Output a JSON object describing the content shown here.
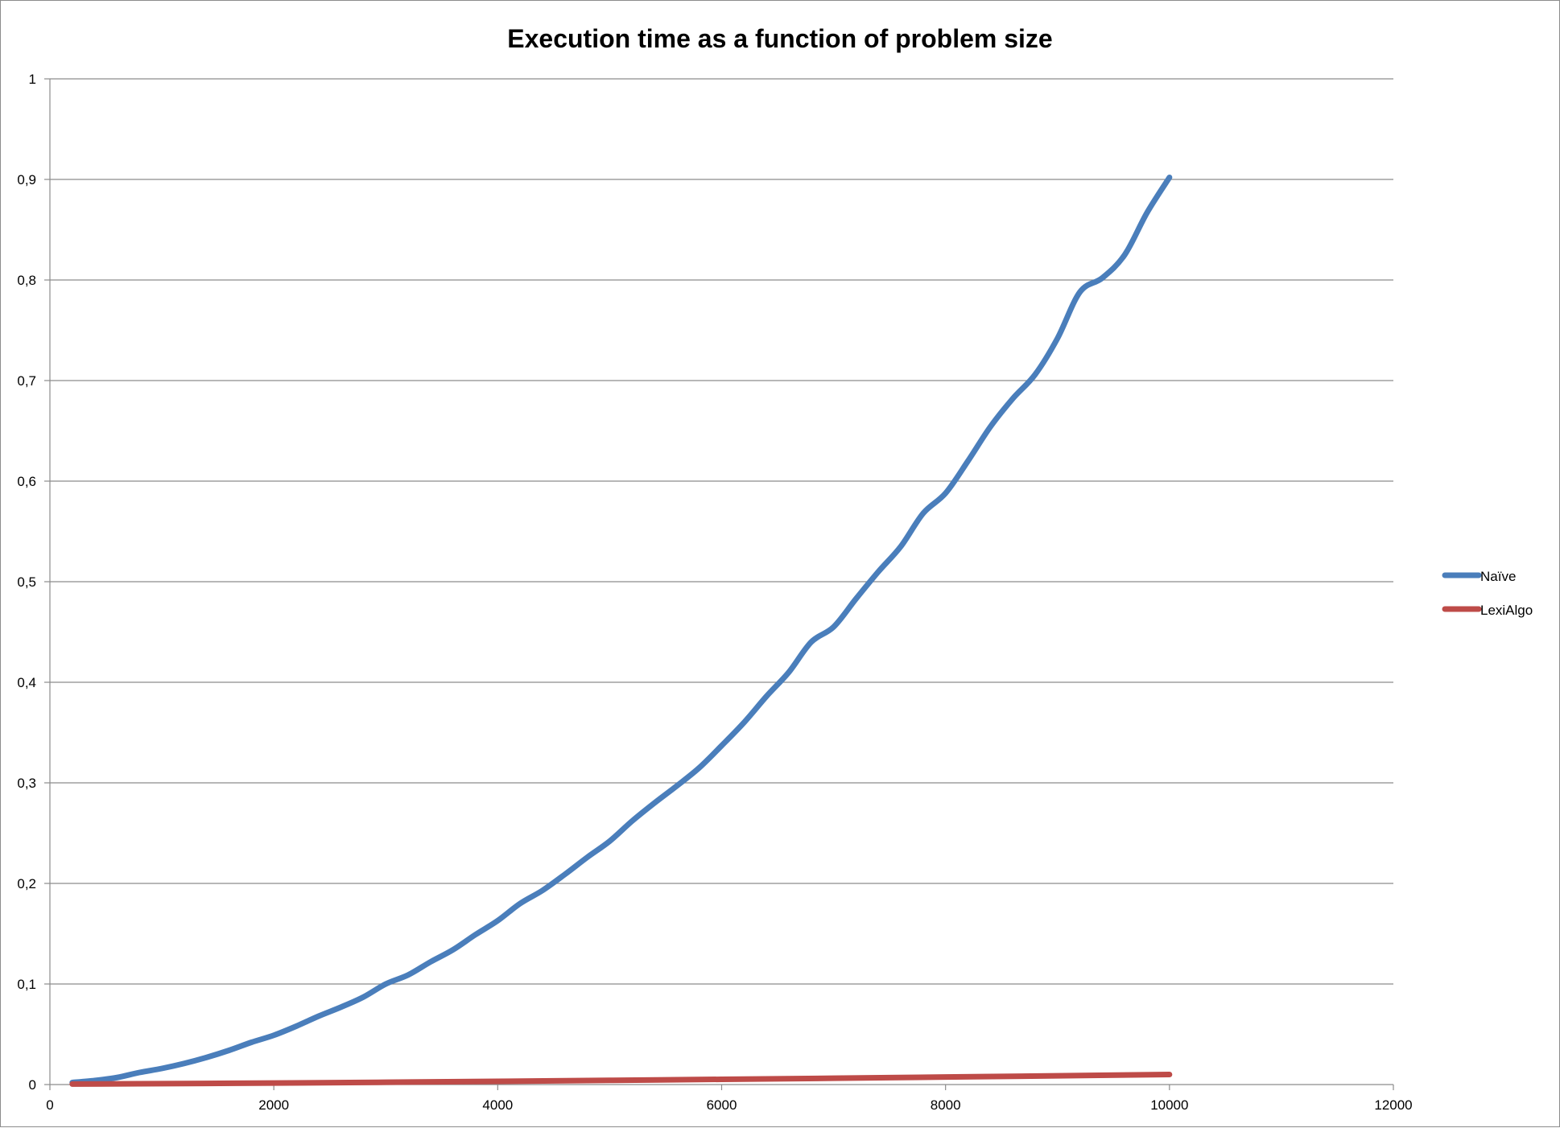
{
  "chart_data": {
    "type": "line",
    "title": "Execution time as a function of problem size",
    "xlabel": "",
    "ylabel": "",
    "xlim": [
      0,
      12000
    ],
    "ylim": [
      0,
      1
    ],
    "x_ticks": [
      "0",
      "2000",
      "4000",
      "6000",
      "8000",
      "10000",
      "12000"
    ],
    "y_ticks": [
      "0",
      "0,1",
      "0,2",
      "0,3",
      "0,4",
      "0,5",
      "0,6",
      "0,7",
      "0,8",
      "0,9",
      "1"
    ],
    "grid": "horizontal",
    "legend_position": "right",
    "series": [
      {
        "name": "Naïve",
        "color": "#4a7ebb",
        "x": [
          200,
          400,
          600,
          800,
          1000,
          1200,
          1400,
          1600,
          1800,
          2000,
          2200,
          2400,
          2600,
          2800,
          3000,
          3200,
          3400,
          3600,
          3800,
          4000,
          4200,
          4400,
          4600,
          4800,
          5000,
          5200,
          5400,
          5600,
          5800,
          6000,
          6200,
          6400,
          6600,
          6800,
          7000,
          7200,
          7400,
          7600,
          7800,
          8000,
          8200,
          8400,
          8600,
          8800,
          9000,
          9200,
          9400,
          9600,
          9800,
          10000
        ],
        "y": [
          0.002,
          0.004,
          0.007,
          0.012,
          0.016,
          0.021,
          0.027,
          0.034,
          0.042,
          0.049,
          0.058,
          0.068,
          0.077,
          0.087,
          0.1,
          0.109,
          0.122,
          0.134,
          0.149,
          0.163,
          0.18,
          0.193,
          0.209,
          0.226,
          0.242,
          0.262,
          0.28,
          0.297,
          0.315,
          0.337,
          0.36,
          0.386,
          0.41,
          0.44,
          0.455,
          0.483,
          0.51,
          0.535,
          0.568,
          0.588,
          0.62,
          0.654,
          0.682,
          0.706,
          0.742,
          0.788,
          0.802,
          0.825,
          0.867,
          0.902
        ]
      },
      {
        "name": "LexiAlgo",
        "color": "#be4b48",
        "x": [
          200,
          1000,
          2000,
          3000,
          4000,
          5000,
          6000,
          7000,
          8000,
          9000,
          10000
        ],
        "y": [
          0.0005,
          0.0009,
          0.0015,
          0.0023,
          0.0032,
          0.0042,
          0.0052,
          0.0063,
          0.0075,
          0.0087,
          0.01
        ]
      }
    ]
  }
}
